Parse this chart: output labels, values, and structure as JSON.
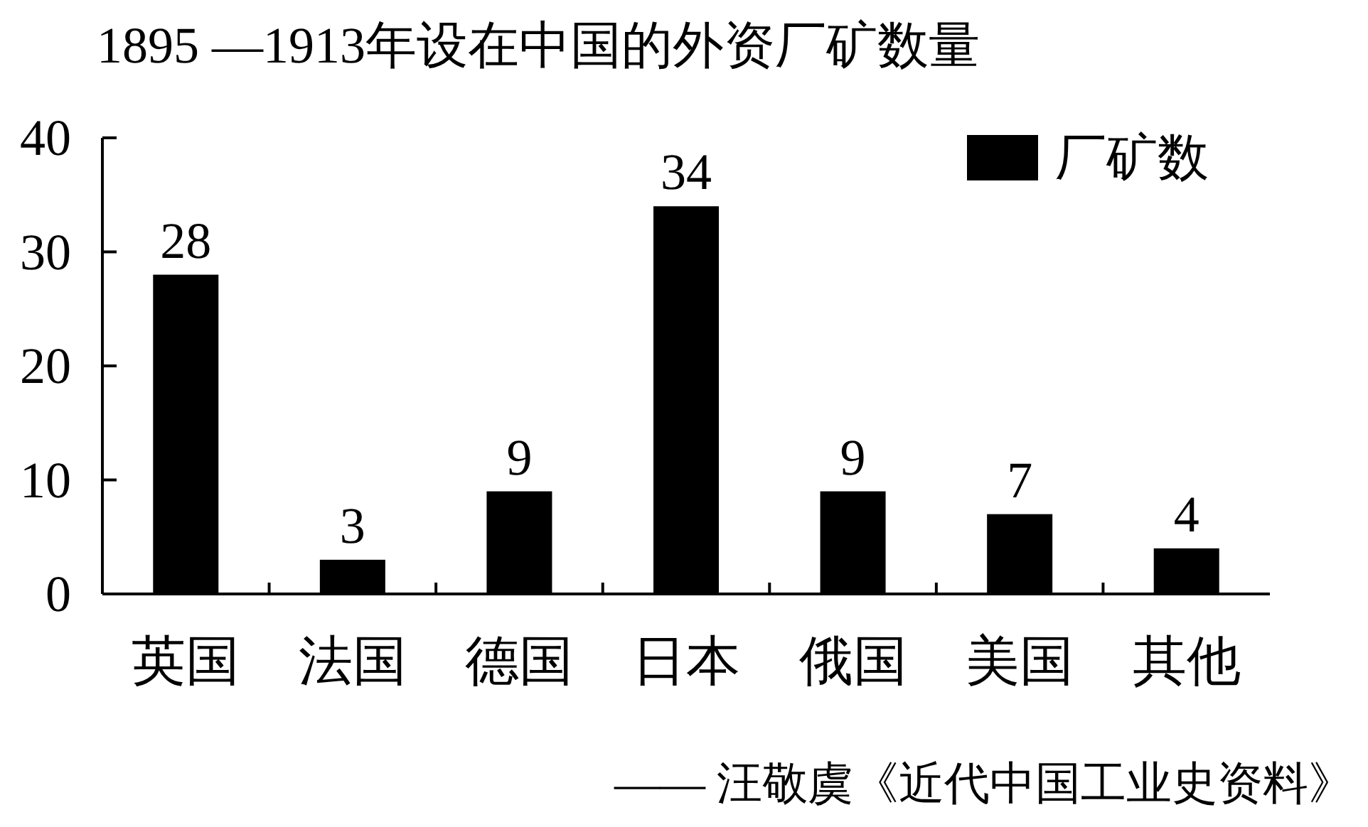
{
  "chart_data": {
    "type": "bar",
    "title": "1895 —1913年设在中国的外资厂矿数量",
    "categories": [
      "英国",
      "法国",
      "德国",
      "日本",
      "俄国",
      "美国",
      "其他"
    ],
    "series": [
      {
        "name": "厂矿数",
        "color": "#000000",
        "values": [
          28,
          3,
          9,
          34,
          9,
          7,
          4
        ]
      }
    ],
    "ylim": [
      0,
      40
    ],
    "yticks": [
      0,
      10,
      20,
      30,
      40
    ],
    "data_labels": true,
    "legend": "top right",
    "annotations": [
      "—— 汪敬虞《近代中国工业史资料》"
    ]
  }
}
